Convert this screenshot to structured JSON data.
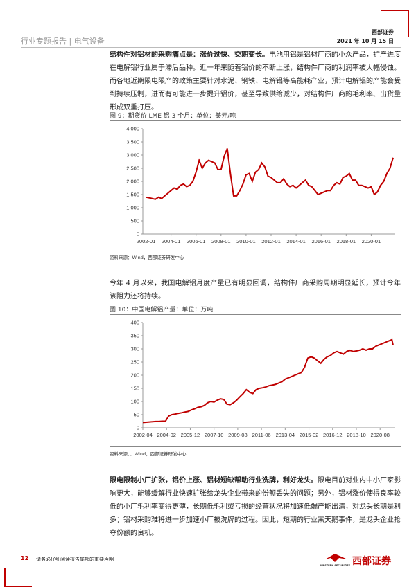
{
  "header": {
    "section": "行业专题报告 | 电气设备",
    "brand": "西部证券",
    "date": "2021 年 10 月 15 日"
  },
  "paragraphs": [
    {
      "bold": "结构件对铝材的采购痛点是：涨价过快、交期变长。",
      "text": "电池用铝是铝材厂商的小众产品，扩产进度在电解铝行业属于滞后品种。近一年来随着铝价的不断上涨，结构件厂商的利润率被大幅侵蚀。而各地近期限电限产的政策主要针对水泥、钢铁、电解铝等高能耗产业，预计电解铝的产能会受到持续压制，进而有可能进一步提升铝价，甚至导致供给减少，对结构件厂商的毛利率、出货量形成双重打压。"
    },
    {
      "text": "今年 4 月以来，我国电解铝月度产量已有明显回调，结构件厂商采购周期明显延长，预计今年该阻力还将持续。"
    },
    {
      "bold": "限电限制小厂扩张，铝价上涨、铝材短缺帮助行业洗牌，利好龙头。",
      "text": "限电目前对业内中小厂家影响更大，能够缓解行业快速扩张给龙头企业带来的份额丢失的问题；另外，铝材涨价使得良率较低的小厂毛利率变得更薄，长期低毛利或亏损的经营状况将加速低端产能出清，对龙头长期是利多；铝材采购难将进一步加速小厂被洗牌的过程。因此，短期的行业黑天鹅事件，是龙头企业抢夺份额的良机。"
    }
  ],
  "chart_data": [
    {
      "type": "line",
      "title": "图 9：期货价 LME 铝 3 个月：单位：美元/吨",
      "source": "资料来源：Wind，西部证券研发中心",
      "color": "#c00000",
      "x": [
        "2002-01",
        "2002-04",
        "2002-07",
        "2002-10",
        "2003-01",
        "2003-04",
        "2003-07",
        "2003-10",
        "2004-01",
        "2004-04",
        "2004-07",
        "2004-10",
        "2005-01",
        "2005-04",
        "2005-07",
        "2005-10",
        "2006-01",
        "2006-04",
        "2006-07",
        "2006-10",
        "2007-01",
        "2007-04",
        "2007-07",
        "2007-10",
        "2008-01",
        "2008-04",
        "2008-07",
        "2008-10",
        "2009-01",
        "2009-04",
        "2009-07",
        "2009-10",
        "2010-01",
        "2010-04",
        "2010-07",
        "2010-10",
        "2011-01",
        "2011-04",
        "2011-07",
        "2011-10",
        "2012-01",
        "2012-04",
        "2012-07",
        "2012-10",
        "2013-01",
        "2013-04",
        "2013-07",
        "2013-10",
        "2014-01",
        "2014-04",
        "2014-07",
        "2014-10",
        "2015-01",
        "2015-04",
        "2015-07",
        "2015-10",
        "2016-01",
        "2016-04",
        "2016-07",
        "2016-10",
        "2017-01",
        "2017-04",
        "2017-07",
        "2017-10",
        "2018-01",
        "2018-04",
        "2018-07",
        "2018-10",
        "2019-01",
        "2019-04",
        "2019-07",
        "2019-10",
        "2020-01",
        "2020-04",
        "2020-07",
        "2020-10",
        "2021-01",
        "2021-04",
        "2021-07",
        "2021-10"
      ],
      "values": [
        1400,
        1380,
        1350,
        1320,
        1400,
        1350,
        1450,
        1550,
        1650,
        1750,
        1700,
        1850,
        1900,
        1800,
        1850,
        2000,
        2350,
        2800,
        2500,
        2700,
        2800,
        2750,
        2700,
        2450,
        2450,
        2950,
        3250,
        2300,
        1450,
        1450,
        1650,
        1900,
        2250,
        2300,
        2000,
        2350,
        2450,
        2700,
        2550,
        2200,
        2150,
        2050,
        1950,
        1950,
        2100,
        1900,
        1800,
        1850,
        1750,
        1850,
        1950,
        2050,
        1850,
        1800,
        1650,
        1500,
        1550,
        1600,
        1650,
        1650,
        1850,
        1950,
        1900,
        2150,
        2200,
        2300,
        2050,
        2050,
        1850,
        1850,
        1800,
        1750,
        1800,
        1500,
        1600,
        1850,
        2000,
        2300,
        2500,
        2900
      ],
      "xlim": [
        "2001-10",
        "2021-12"
      ],
      "xticks": [
        "2002-01",
        "2004-01",
        "2006-01",
        "2008-01",
        "2010-01",
        "2012-01",
        "2014-01",
        "2016-01",
        "2018-01",
        "2020-01"
      ],
      "ylim": [
        0,
        4000
      ],
      "yticks": [
        0,
        500,
        {
          "value": 1000,
          "label": "1,000"
        },
        {
          "value": 1500,
          "label": "1,500"
        },
        {
          "value": 2000,
          "label": "2,000"
        },
        {
          "value": 2500,
          "label": "2,500"
        },
        {
          "value": 3000,
          "label": "3,000"
        },
        {
          "value": 3500,
          "label": "3,500"
        },
        {
          "value": 4000,
          "label": "4,000"
        }
      ]
    },
    {
      "type": "line",
      "title": "图 10：中国电解铝产量：单位：万吨",
      "source": "资料来源：：Wind，西部证券研发中心",
      "color": "#c00000",
      "x": [
        "2002-04",
        "2002-07",
        "2002-10",
        "2003-01",
        "2003-04",
        "2003-07",
        "2003-10",
        "2004-01",
        "2004-04",
        "2004-07",
        "2004-10",
        "2005-01",
        "2005-04",
        "2005-07",
        "2005-10",
        "2006-01",
        "2006-04",
        "2006-07",
        "2006-10",
        "2007-01",
        "2007-04",
        "2007-07",
        "2007-10",
        "2008-01",
        "2008-04",
        "2008-07",
        "2008-10",
        "2009-01",
        "2009-04",
        "2009-07",
        "2009-10",
        "2010-01",
        "2010-04",
        "2010-07",
        "2010-10",
        "2011-01",
        "2011-04",
        "2011-07",
        "2011-10",
        "2012-01",
        "2012-04",
        "2012-07",
        "2012-10",
        "2013-01",
        "2013-04",
        "2013-07",
        "2013-10",
        "2014-01",
        "2014-04",
        "2014-07",
        "2014-10",
        "2015-01",
        "2015-04",
        "2015-07",
        "2015-10",
        "2016-01",
        "2016-04",
        "2016-07",
        "2016-10",
        "2017-01",
        "2017-04",
        "2017-07",
        "2017-10",
        "2018-01",
        "2018-04",
        "2018-07",
        "2018-10",
        "2019-01",
        "2019-04",
        "2019-07",
        "2019-10",
        "2020-01",
        "2020-04",
        "2020-07",
        "2020-10",
        "2021-01",
        "2021-04",
        "2021-07",
        "2021-08"
      ],
      "values": [
        20,
        21,
        22,
        23,
        24,
        24,
        25,
        25,
        45,
        50,
        52,
        55,
        57,
        60,
        62,
        68,
        72,
        78,
        80,
        85,
        95,
        100,
        98,
        105,
        110,
        108,
        90,
        88,
        95,
        105,
        118,
        130,
        145,
        135,
        130,
        145,
        150,
        152,
        155,
        160,
        162,
        165,
        170,
        175,
        185,
        190,
        195,
        200,
        205,
        210,
        230,
        265,
        270,
        265,
        255,
        245,
        260,
        270,
        275,
        285,
        290,
        285,
        280,
        290,
        295,
        290,
        292,
        295,
        300,
        295,
        300,
        300,
        310,
        315,
        320,
        325,
        330,
        335,
        315
      ],
      "xlim": [
        "2002-04",
        "2021-10"
      ],
      "xticks": [
        "2002-04",
        "2004-02",
        "2005-12",
        "2007-10",
        "2009-08",
        "2011-06",
        "2013-04",
        "2015-02",
        "2016-12",
        "2018-10",
        "2020-08"
      ],
      "ylim": [
        0,
        400
      ],
      "yticks": [
        0,
        50,
        100,
        150,
        200,
        250,
        300,
        350,
        400
      ]
    }
  ],
  "footer": {
    "page": "12",
    "notice": "请务必仔细阅读报告尾部的重要声明",
    "brand": "西部证券",
    "brand_en": "WESTERN SECURITIES"
  }
}
